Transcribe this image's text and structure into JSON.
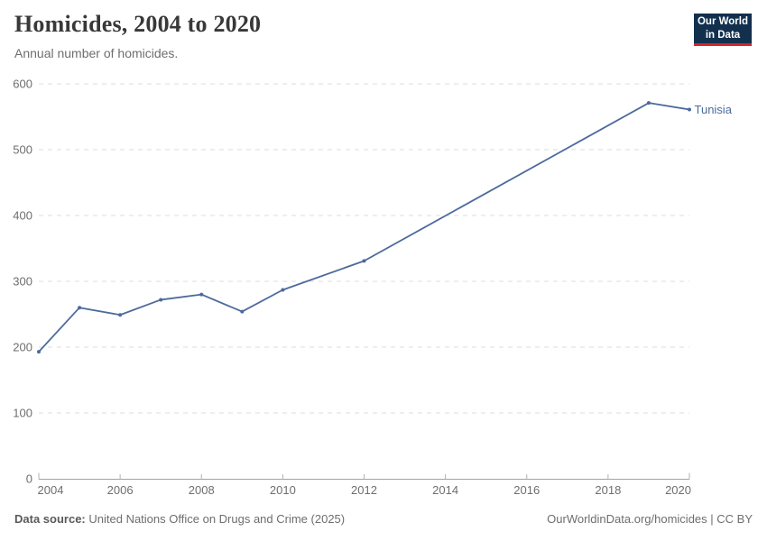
{
  "header": {
    "title": "Homicides, 2004 to 2020",
    "subtitle": "Annual number of homicides.",
    "logo": {
      "line1": "Our World",
      "line2": "in Data",
      "bg_color": "#12304e",
      "accent_color": "#d0252a"
    }
  },
  "chart_data": {
    "type": "line",
    "title": "Homicides, 2004 to 2020",
    "xlabel": "",
    "ylabel": "",
    "xlim": [
      2004,
      2020
    ],
    "ylim": [
      0,
      600
    ],
    "x_ticks": [
      2004,
      2006,
      2008,
      2010,
      2012,
      2014,
      2016,
      2018,
      2020
    ],
    "y_ticks": [
      0,
      100,
      200,
      300,
      400,
      500,
      600
    ],
    "grid": "horizontal-dashed",
    "legend_position": "end-of-line-label",
    "series": [
      {
        "name": "Tunisia",
        "color": "#4c6a9c",
        "x": [
          2004,
          2005,
          2006,
          2007,
          2008,
          2009,
          2010,
          2012,
          2019,
          2020
        ],
        "values": [
          193,
          260,
          249,
          272,
          280,
          254,
          287,
          331,
          571,
          561
        ]
      }
    ]
  },
  "footer": {
    "source_label": "Data source:",
    "source_value": "United Nations Office on Drugs and Crime (2025)",
    "credit": "OurWorldinData.org/homicides | CC BY"
  }
}
